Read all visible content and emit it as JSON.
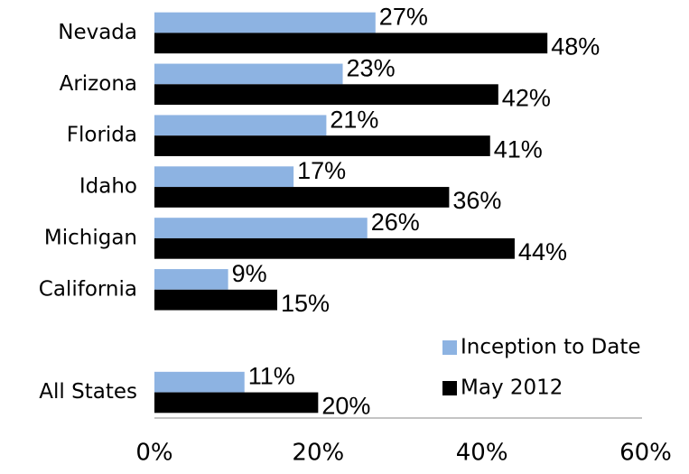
{
  "chart_data": {
    "type": "hbar",
    "categories": [
      "Nevada",
      "Arizona",
      "Florida",
      "Idaho",
      "Michigan",
      "California",
      null,
      "All States"
    ],
    "series": [
      {
        "name": "Inception to Date",
        "color": "#8db3e2",
        "values": [
          27,
          23,
          21,
          17,
          26,
          9,
          null,
          11
        ],
        "value_labels": [
          "27%",
          "23%",
          "21%",
          "17%",
          "26%",
          "9%",
          null,
          "11%"
        ]
      },
      {
        "name": "May 2012",
        "color": "#000000",
        "values": [
          48,
          42,
          41,
          36,
          44,
          15,
          null,
          20
        ],
        "value_labels": [
          "48%",
          "42%",
          "41%",
          "36%",
          "44%",
          "15%",
          null,
          "20%"
        ]
      }
    ],
    "xlim": [
      0,
      60
    ],
    "xticks": [
      {
        "value": 0,
        "label": "0%"
      },
      {
        "value": 20,
        "label": "20%"
      },
      {
        "value": 40,
        "label": "40%"
      },
      {
        "value": 60,
        "label": "60%"
      }
    ],
    "grid": false,
    "legend": "right"
  }
}
